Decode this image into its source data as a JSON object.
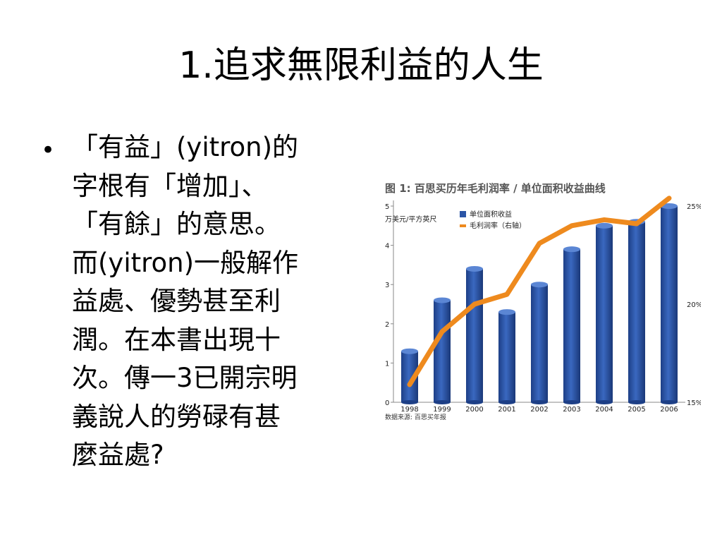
{
  "slide": {
    "title": "1.追求無限利益的人生",
    "bullet_text": "「有益」(yitron)的\n字根有「增加」、\n「有餘」的意思。\n而(yitron)一般解作\n益處、優勢甚至利\n潤。在本書出現十\n次。傳一3已開宗明\n義說人的勞碌有甚\n麼益處?"
  },
  "chart_data": {
    "type": "bar",
    "title": "图 1: 百思买历年毛利润率 / 单位面积收益曲线",
    "ylabel": "万美元/平方英尺",
    "source": "数据来源:  百思买年报",
    "categories": [
      "1998",
      "1999",
      "2000",
      "2001",
      "2002",
      "2003",
      "2004",
      "2005",
      "2006"
    ],
    "ylim": [
      0,
      5
    ],
    "y_ticks": [
      "0",
      "1",
      "2",
      "3",
      "4",
      "5"
    ],
    "y2lim": [
      15,
      25
    ],
    "y2_ticks": [
      "15%",
      "20%",
      "25%"
    ],
    "legend_position": "top-left",
    "series": [
      {
        "name": "单位面积收益",
        "kind": "bar",
        "axis": "left",
        "color": "#2b55a6",
        "values": [
          1.3,
          2.6,
          3.4,
          2.3,
          3.0,
          3.9,
          4.5,
          4.6,
          5.0
        ]
      },
      {
        "name": "毛利润率（右轴）",
        "kind": "line",
        "axis": "right",
        "color": "#ee8a1e",
        "values": [
          15.9,
          18.6,
          20.0,
          20.5,
          23.1,
          24.0,
          24.3,
          24.1,
          25.4
        ]
      }
    ]
  }
}
